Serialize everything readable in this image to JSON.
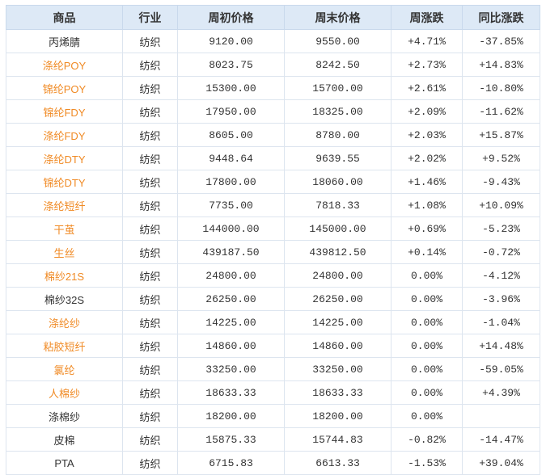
{
  "colors": {
    "link": "#f08a24",
    "up": "#e0202a",
    "down": "#1a8a1a",
    "header_bg": "#dde9f6"
  },
  "headers": [
    "商品",
    "行业",
    "周初价格",
    "周末价格",
    "周涨跌",
    "同比涨跌"
  ],
  "rows": [
    {
      "name": "丙烯腈",
      "link": false,
      "cat": "纺织",
      "start": "9120.00",
      "end": "9550.00",
      "week": "+4.71%",
      "yoy": "-37.85%"
    },
    {
      "name": "涤纶POY",
      "link": true,
      "cat": "纺织",
      "start": "8023.75",
      "end": "8242.50",
      "week": "+2.73%",
      "yoy": "+14.83%"
    },
    {
      "name": "锦纶POY",
      "link": true,
      "cat": "纺织",
      "start": "15300.00",
      "end": "15700.00",
      "week": "+2.61%",
      "yoy": "-10.80%"
    },
    {
      "name": "锦纶FDY",
      "link": true,
      "cat": "纺织",
      "start": "17950.00",
      "end": "18325.00",
      "week": "+2.09%",
      "yoy": "-11.62%"
    },
    {
      "name": "涤纶FDY",
      "link": true,
      "cat": "纺织",
      "start": "8605.00",
      "end": "8780.00",
      "week": "+2.03%",
      "yoy": "+15.87%"
    },
    {
      "name": "涤纶DTY",
      "link": true,
      "cat": "纺织",
      "start": "9448.64",
      "end": "9639.55",
      "week": "+2.02%",
      "yoy": "+9.52%"
    },
    {
      "name": "锦纶DTY",
      "link": true,
      "cat": "纺织",
      "start": "17800.00",
      "end": "18060.00",
      "week": "+1.46%",
      "yoy": "-9.43%"
    },
    {
      "name": "涤纶短纤",
      "link": true,
      "cat": "纺织",
      "start": "7735.00",
      "end": "7818.33",
      "week": "+1.08%",
      "yoy": "+10.09%"
    },
    {
      "name": "干茧",
      "link": true,
      "cat": "纺织",
      "start": "144000.00",
      "end": "145000.00",
      "week": "+0.69%",
      "yoy": "-5.23%"
    },
    {
      "name": "生丝",
      "link": true,
      "cat": "纺织",
      "start": "439187.50",
      "end": "439812.50",
      "week": "+0.14%",
      "yoy": "-0.72%"
    },
    {
      "name": "棉纱21S",
      "link": true,
      "cat": "纺织",
      "start": "24800.00",
      "end": "24800.00",
      "week": "0.00%",
      "yoy": "-4.12%"
    },
    {
      "name": "棉纱32S",
      "link": false,
      "cat": "纺织",
      "start": "26250.00",
      "end": "26250.00",
      "week": "0.00%",
      "yoy": "-3.96%"
    },
    {
      "name": "涤纶纱",
      "link": true,
      "cat": "纺织",
      "start": "14225.00",
      "end": "14225.00",
      "week": "0.00%",
      "yoy": "-1.04%"
    },
    {
      "name": "粘胶短纤",
      "link": true,
      "cat": "纺织",
      "start": "14860.00",
      "end": "14860.00",
      "week": "0.00%",
      "yoy": "+14.48%"
    },
    {
      "name": "氯纶",
      "link": true,
      "cat": "纺织",
      "start": "33250.00",
      "end": "33250.00",
      "week": "0.00%",
      "yoy": "-59.05%"
    },
    {
      "name": "人棉纱",
      "link": true,
      "cat": "纺织",
      "start": "18633.33",
      "end": "18633.33",
      "week": "0.00%",
      "yoy": "+4.39%"
    },
    {
      "name": "涤棉纱",
      "link": false,
      "cat": "纺织",
      "start": "18200.00",
      "end": "18200.00",
      "week": "0.00%",
      "yoy": ""
    },
    {
      "name": "皮棉",
      "link": false,
      "cat": "纺织",
      "start": "15875.33",
      "end": "15744.83",
      "week": "-0.82%",
      "yoy": "-14.47%"
    },
    {
      "name": "PTA",
      "link": false,
      "cat": "纺织",
      "start": "6715.83",
      "end": "6613.33",
      "week": "-1.53%",
      "yoy": "+39.04%"
    }
  ]
}
